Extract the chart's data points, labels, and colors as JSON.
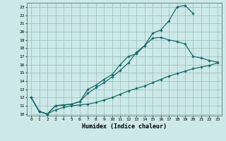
{
  "title": "",
  "xlabel": "Humidex (Indice chaleur)",
  "xlim_min": -0.5,
  "xlim_max": 23.5,
  "ylim_min": 9.8,
  "ylim_max": 23.5,
  "bg_color": "#cce8e8",
  "grid_color": "#99bbbb",
  "line_color": "#1a6b6b",
  "line1_x": [
    0,
    1,
    2,
    3,
    4,
    5,
    6,
    7,
    8,
    9,
    10,
    11,
    12,
    13,
    14,
    15,
    16,
    17,
    18,
    19,
    20
  ],
  "line1_y": [
    12.0,
    10.3,
    10.0,
    11.0,
    11.1,
    11.2,
    11.5,
    13.0,
    13.5,
    14.2,
    14.8,
    16.0,
    17.0,
    17.3,
    18.3,
    19.8,
    20.2,
    21.3,
    23.0,
    23.2,
    22.2
  ],
  "line2_x": [
    0,
    1,
    2,
    3,
    4,
    5,
    6,
    7,
    8,
    9,
    10,
    11,
    12,
    13,
    14,
    15,
    16,
    17,
    18,
    19,
    20,
    21,
    22,
    23
  ],
  "line2_y": [
    12.0,
    10.3,
    10.0,
    11.0,
    11.1,
    11.2,
    11.5,
    12.5,
    13.2,
    13.8,
    14.5,
    15.3,
    16.2,
    17.5,
    18.3,
    19.2,
    19.3,
    19.0,
    18.8,
    18.5,
    17.0,
    16.8,
    16.5,
    16.3
  ],
  "line3_x": [
    0,
    1,
    2,
    3,
    4,
    5,
    6,
    7,
    8,
    9,
    10,
    11,
    12,
    13,
    14,
    15,
    16,
    17,
    18,
    19,
    20,
    21,
    22,
    23
  ],
  "line3_y": [
    12.0,
    10.3,
    10.0,
    10.5,
    10.8,
    11.0,
    11.1,
    11.2,
    11.4,
    11.7,
    12.0,
    12.4,
    12.8,
    13.1,
    13.4,
    13.8,
    14.2,
    14.6,
    14.9,
    15.2,
    15.5,
    15.7,
    15.9,
    16.2
  ],
  "xticks": [
    0,
    1,
    2,
    3,
    4,
    5,
    6,
    7,
    8,
    9,
    10,
    11,
    12,
    13,
    14,
    15,
    16,
    17,
    18,
    19,
    20,
    21,
    22,
    23
  ],
  "yticks": [
    10,
    11,
    12,
    13,
    14,
    15,
    16,
    17,
    18,
    19,
    20,
    21,
    22,
    23
  ]
}
